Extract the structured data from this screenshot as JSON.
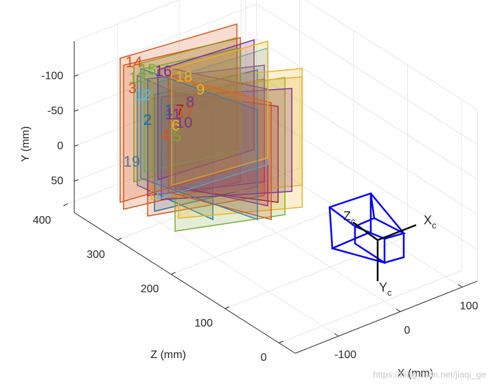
{
  "chart_data": {
    "type": "extrinsics3d",
    "xlabel": "X (mm)",
    "ylabel": "Y (mm)",
    "zlabel": "Z (mm)",
    "xlim": [
      -170,
      125
    ],
    "xticks": [
      -100,
      0,
      100
    ],
    "ylim": [
      -150,
      95
    ],
    "yticks": [
      -100,
      -50,
      0,
      50
    ],
    "zlim": [
      -30,
      380
    ],
    "zticks": [
      0,
      100,
      200,
      300,
      400
    ],
    "grid": true,
    "boards": [
      {
        "label": "1",
        "color": "#0072BD"
      },
      {
        "label": "2",
        "color": "#0072BD"
      },
      {
        "label": "3",
        "color": "#D95319"
      },
      {
        "label": "4",
        "color": "#D95319"
      },
      {
        "label": "5",
        "color": "#77AC30"
      },
      {
        "label": "6",
        "color": "#EDB120"
      },
      {
        "label": "7",
        "color": "#A2142F"
      },
      {
        "label": "8",
        "color": "#7E2F8E"
      },
      {
        "label": "9",
        "color": "#EDB120"
      },
      {
        "label": "10",
        "color": "#7E2F8E"
      },
      {
        "label": "11",
        "color": "#7E2F8E"
      },
      {
        "label": "12",
        "color": "#4DBEEE"
      },
      {
        "label": "13",
        "color": "#77AC30"
      },
      {
        "label": "14",
        "color": "#D95319"
      },
      {
        "label": "15",
        "color": "#77AC30"
      },
      {
        "label": "16",
        "color": "#7E2F8E"
      },
      {
        "label": "17",
        "color": "#D95319"
      },
      {
        "label": "18",
        "color": "#EDB120"
      },
      {
        "label": "19",
        "color": "#4A7A9A"
      }
    ],
    "camera_axes": [
      {
        "main": "X",
        "sub": "c"
      },
      {
        "main": "Y",
        "sub": "c"
      },
      {
        "main": "Z",
        "sub": "c"
      }
    ],
    "watermark": "https://blog.csdn.net/jiaqi_ge"
  }
}
